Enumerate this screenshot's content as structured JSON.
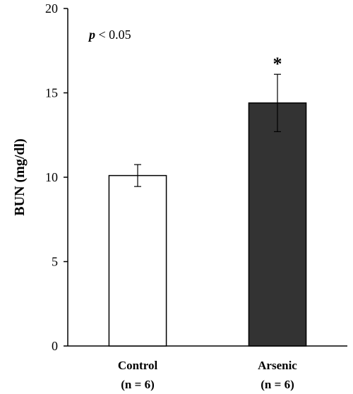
{
  "chart_data": {
    "type": "bar",
    "categories": [
      "Control",
      "Arsenic"
    ],
    "category_sublabels": [
      "(n = 6)",
      "(n = 6)"
    ],
    "values": [
      10.1,
      14.4
    ],
    "errors": [
      0.65,
      1.7
    ],
    "bar_colors": [
      "#ffffff",
      "#333333"
    ],
    "significance_markers": [
      "",
      "*"
    ],
    "ylabel": "BUN  (mg/dl)",
    "ylim": [
      0,
      20
    ],
    "yticks": [
      0,
      5,
      10,
      15,
      20
    ],
    "annotation": {
      "italic": "p",
      "text": " < 0.05"
    },
    "grid": false
  }
}
